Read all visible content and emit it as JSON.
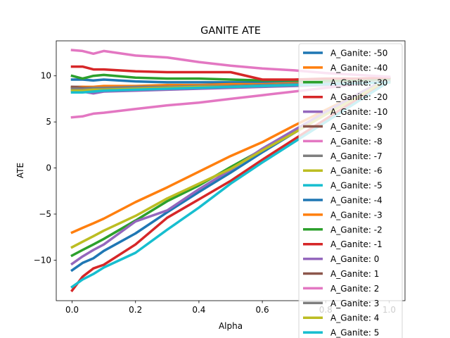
{
  "chart_data": {
    "type": "line",
    "title": "GANITE ATE",
    "xlabel": "Alpha",
    "ylabel": "ATE",
    "xlim": [
      -0.05,
      1.05
    ],
    "ylim": [
      -14.4,
      13.8
    ],
    "x": [
      0.0,
      0.033,
      0.067,
      0.1,
      0.2,
      0.3,
      0.4,
      0.5,
      0.6,
      0.7,
      0.8,
      0.9,
      1.0
    ],
    "xticks": [
      0.0,
      0.2,
      0.4,
      0.6,
      0.8,
      1.0
    ],
    "xtick_labels": [
      "0.0",
      "0.2",
      "0.4",
      "0.6",
      "0.8",
      "1.0"
    ],
    "yticks": [
      -10,
      -5,
      0,
      5,
      10
    ],
    "ytick_labels": [
      "−10",
      "−5",
      "0",
      "5",
      "10"
    ],
    "grid": false,
    "legend_position": "top-right",
    "series": [
      {
        "name": "A_Ganite: -50",
        "color": "#1f77b4",
        "values": [
          -11.1,
          -10.3,
          -9.8,
          -9.0,
          -7.1,
          -4.8,
          -2.6,
          -0.5,
          1.7,
          3.8,
          5.9,
          7.9,
          9.8
        ]
      },
      {
        "name": "A_Ganite: -40",
        "color": "#ff7f0e",
        "values": [
          -7.0,
          -6.5,
          -6.0,
          -5.5,
          -3.7,
          -2.1,
          -0.4,
          1.3,
          2.8,
          4.6,
          6.3,
          8.0,
          9.8
        ]
      },
      {
        "name": "A_Ganite: -30",
        "color": "#2ca02c",
        "values": [
          -9.5,
          -8.9,
          -8.3,
          -7.7,
          -5.7,
          -3.6,
          -1.9,
          0.1,
          2.0,
          4.0,
          6.0,
          7.9,
          9.8
        ]
      },
      {
        "name": "A_Ganite: -20",
        "color": "#d62728",
        "values": [
          -13.3,
          -11.8,
          -10.9,
          -10.5,
          -8.3,
          -5.4,
          -3.4,
          -1.4,
          0.9,
          3.1,
          5.3,
          7.5,
          9.7
        ]
      },
      {
        "name": "A_Ganite: -10",
        "color": "#9467bd",
        "values": [
          -10.4,
          -9.6,
          -8.9,
          -8.3,
          -5.8,
          -4.6,
          -2.3,
          -0.2,
          2.1,
          4.1,
          6.1,
          8.0,
          9.8
        ]
      },
      {
        "name": "A_Ganite: -9",
        "color": "#8c564b",
        "values": [
          8.8,
          8.8,
          8.7,
          8.8,
          8.8,
          8.9,
          8.9,
          9.0,
          9.0,
          9.1,
          9.2,
          9.3,
          9.4
        ]
      },
      {
        "name": "A_Ganite: -8",
        "color": "#e377c2",
        "values": [
          5.5,
          5.6,
          5.9,
          6.0,
          6.4,
          6.8,
          7.1,
          7.5,
          7.9,
          8.3,
          8.7,
          9.1,
          9.5
        ]
      },
      {
        "name": "A_Ganite: -7",
        "color": "#7f7f7f",
        "values": [
          8.6,
          8.5,
          8.5,
          8.6,
          8.7,
          8.7,
          8.8,
          8.8,
          8.9,
          9.0,
          9.1,
          9.2,
          9.3
        ]
      },
      {
        "name": "A_Ganite: -6",
        "color": "#bcbd22",
        "values": [
          -8.6,
          -8.0,
          -7.4,
          -6.8,
          -5.2,
          -3.3,
          -1.7,
          -0.1,
          1.9,
          3.8,
          5.8,
          7.7,
          9.7
        ]
      },
      {
        "name": "A_Ganite: -5",
        "color": "#17becf",
        "values": [
          -12.9,
          -12.1,
          -11.5,
          -10.8,
          -9.2,
          -6.7,
          -4.3,
          -1.7,
          0.6,
          2.8,
          5.0,
          7.2,
          9.4
        ]
      },
      {
        "name": "A_Ganite: -4",
        "color": "#1f77b4",
        "values": [
          9.6,
          9.6,
          9.5,
          9.6,
          9.4,
          9.3,
          9.3,
          9.3,
          9.3,
          9.3,
          9.4,
          9.4,
          9.5
        ]
      },
      {
        "name": "A_Ganite: -3",
        "color": "#ff7f0e",
        "values": [
          8.7,
          8.8,
          8.8,
          8.9,
          8.9,
          9.0,
          9.0,
          9.1,
          9.1,
          9.2,
          9.2,
          9.3,
          9.4
        ]
      },
      {
        "name": "A_Ganite: -2",
        "color": "#2ca02c",
        "values": [
          10.0,
          9.7,
          10.0,
          10.1,
          9.8,
          9.7,
          9.7,
          9.6,
          9.5,
          9.5,
          9.5,
          9.5,
          9.6
        ]
      },
      {
        "name": "A_Ganite: -1",
        "color": "#d62728",
        "values": [
          11.0,
          11.0,
          10.7,
          10.7,
          10.5,
          10.4,
          10.4,
          10.4,
          9.6,
          9.6,
          9.7,
          9.7,
          9.8
        ]
      },
      {
        "name": "A_Ganite: 0",
        "color": "#9467bd",
        "values": [
          8.4,
          8.3,
          8.1,
          8.3,
          8.4,
          8.5,
          8.6,
          8.7,
          8.8,
          8.9,
          9.0,
          9.2,
          9.4
        ]
      },
      {
        "name": "A_Ganite: 1",
        "color": "#8c564b",
        "values": [
          8.8,
          8.7,
          8.7,
          8.7,
          8.7,
          8.8,
          8.8,
          8.9,
          9.0,
          9.1,
          9.2,
          9.3,
          9.4
        ]
      },
      {
        "name": "A_Ganite: 2",
        "color": "#e377c2",
        "values": [
          12.8,
          12.7,
          12.4,
          12.7,
          12.2,
          12.0,
          11.5,
          11.1,
          10.8,
          10.6,
          10.3,
          10.1,
          9.9
        ]
      },
      {
        "name": "A_Ganite: 3",
        "color": "#7f7f7f",
        "values": [
          8.6,
          8.6,
          8.7,
          8.7,
          8.8,
          8.8,
          8.9,
          8.9,
          9.0,
          9.1,
          9.2,
          9.3,
          9.4
        ]
      },
      {
        "name": "A_Ganite: 4",
        "color": "#bcbd22",
        "values": [
          8.4,
          8.4,
          8.5,
          8.5,
          8.6,
          8.7,
          8.8,
          8.8,
          8.9,
          9.0,
          9.1,
          9.2,
          9.3
        ]
      },
      {
        "name": "A_Ganite: 5",
        "color": "#17becf",
        "values": [
          8.2,
          8.2,
          8.3,
          8.4,
          8.5,
          8.6,
          8.7,
          8.8,
          8.9,
          9.0,
          9.1,
          9.2,
          9.3
        ]
      }
    ]
  }
}
